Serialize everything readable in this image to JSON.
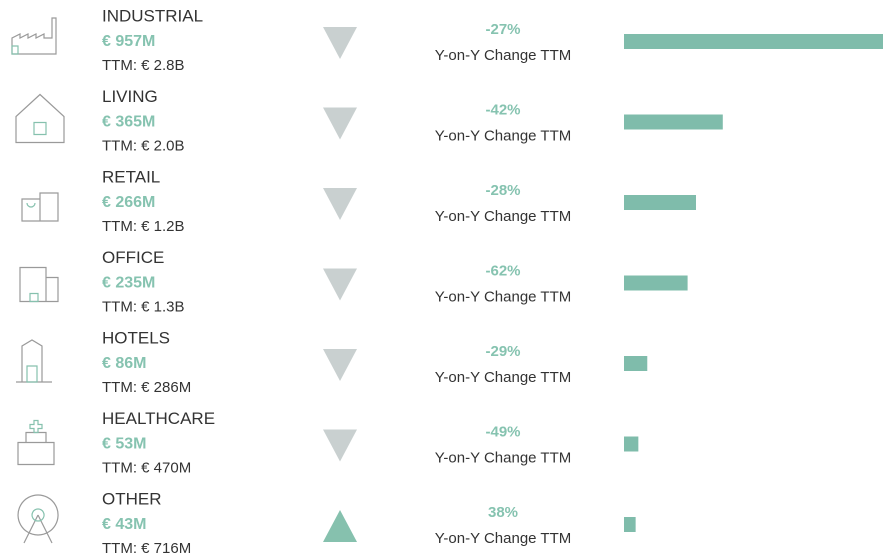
{
  "chart_data": {
    "type": "bar",
    "categories": [
      "INDUSTRIAL",
      "LIVING",
      "RETAIL",
      "OFFICE",
      "HOTELS",
      "HEALTHCARE",
      "OTHER"
    ],
    "values": [
      957,
      365,
      266,
      235,
      86,
      53,
      43
    ],
    "value_labels": [
      "€ 957M",
      "€ 365M",
      "€ 266M",
      "€ 235M",
      "€ 86M",
      "€ 53M",
      "€ 43M"
    ],
    "ttm": [
      {
        "value": 2800,
        "label": "TTM: € 2.8B"
      },
      {
        "value": 2000,
        "label": "TTM: € 2.0B"
      },
      {
        "value": 1200,
        "label": "TTM: € 1.2B"
      },
      {
        "value": 1300,
        "label": "TTM: € 1.3B"
      },
      {
        "value": 286,
        "label": "TTM: € 286M"
      },
      {
        "value": 470,
        "label": "TTM: € 470M"
      },
      {
        "value": 716,
        "label": "TTM: € 716M"
      }
    ],
    "changes": [
      -27,
      -42,
      -28,
      -62,
      -29,
      -49,
      38
    ],
    "change_labels": [
      "-27%",
      "-42%",
      "-28%",
      "-62%",
      "-29%",
      "-49%",
      "38%"
    ],
    "change_caption": "Y-on-Y Change TTM",
    "color": "#7fbcab",
    "down_color": "#c9d0d0",
    "up_color": "#86c1ae",
    "xlim": [
      0,
      957
    ]
  }
}
